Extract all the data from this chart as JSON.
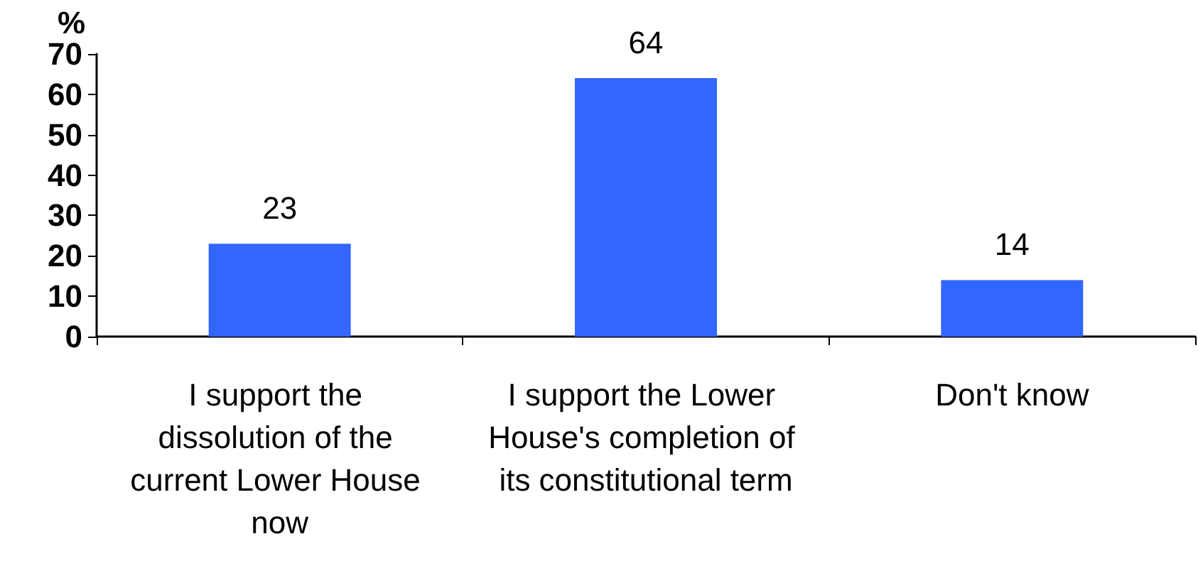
{
  "chart_data": {
    "type": "bar",
    "ylabel": "%",
    "categories": [
      "I support the dissolution of the current Lower House now",
      "I support the Lower House's completion of its constitutional term",
      "Don't know"
    ],
    "values": [
      23,
      64,
      14
    ],
    "color": "#3366ff",
    "ylim": [
      0,
      70
    ],
    "yticks": [
      0,
      10,
      20,
      30,
      40,
      50,
      60,
      70
    ],
    "data_labels": true,
    "grid": false
  }
}
